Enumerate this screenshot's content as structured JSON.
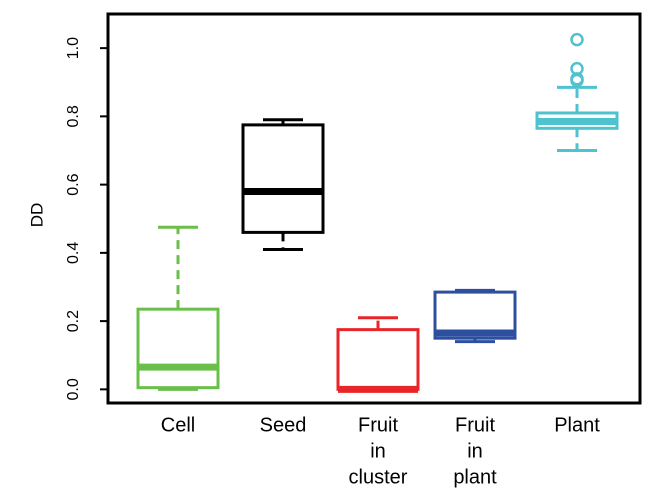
{
  "chart_data": {
    "type": "box",
    "y_label": "DD",
    "categories": [
      [
        "Cell"
      ],
      [
        "Seed"
      ],
      [
        "Fruit",
        "in",
        "cluster"
      ],
      [
        "Fruit",
        "in",
        "plant"
      ],
      [
        "Plant"
      ]
    ],
    "boxes": [
      {
        "min": 0.0,
        "q1": 0.005,
        "median": 0.065,
        "q3": 0.235,
        "max": 0.475,
        "outliers": [],
        "color": "#6abf4b"
      },
      {
        "min": 0.41,
        "q1": 0.46,
        "median": 0.58,
        "q3": 0.775,
        "max": 0.79,
        "outliers": [],
        "color": "#000000"
      },
      {
        "min": 0.0,
        "q1": 0.0,
        "median": 0.0,
        "q3": 0.175,
        "max": 0.21,
        "outliers": [],
        "color": "#e8262a"
      },
      {
        "min": 0.14,
        "q1": 0.15,
        "median": 0.165,
        "q3": 0.285,
        "max": 0.29,
        "outliers": [],
        "color": "#2c4fa0"
      },
      {
        "min": 0.7,
        "q1": 0.765,
        "median": 0.785,
        "q3": 0.81,
        "max": 0.885,
        "outliers": [
          0.905,
          0.91,
          0.94,
          1.025
        ],
        "color": "#4ec3cf"
      }
    ],
    "ylim": [
      -0.04,
      1.1
    ],
    "yticks": [
      {
        "value": 0,
        "label": "0.0"
      },
      0.2,
      0.4,
      0.6,
      0.8,
      {
        "value": 1,
        "label": "1.0"
      }
    ]
  }
}
